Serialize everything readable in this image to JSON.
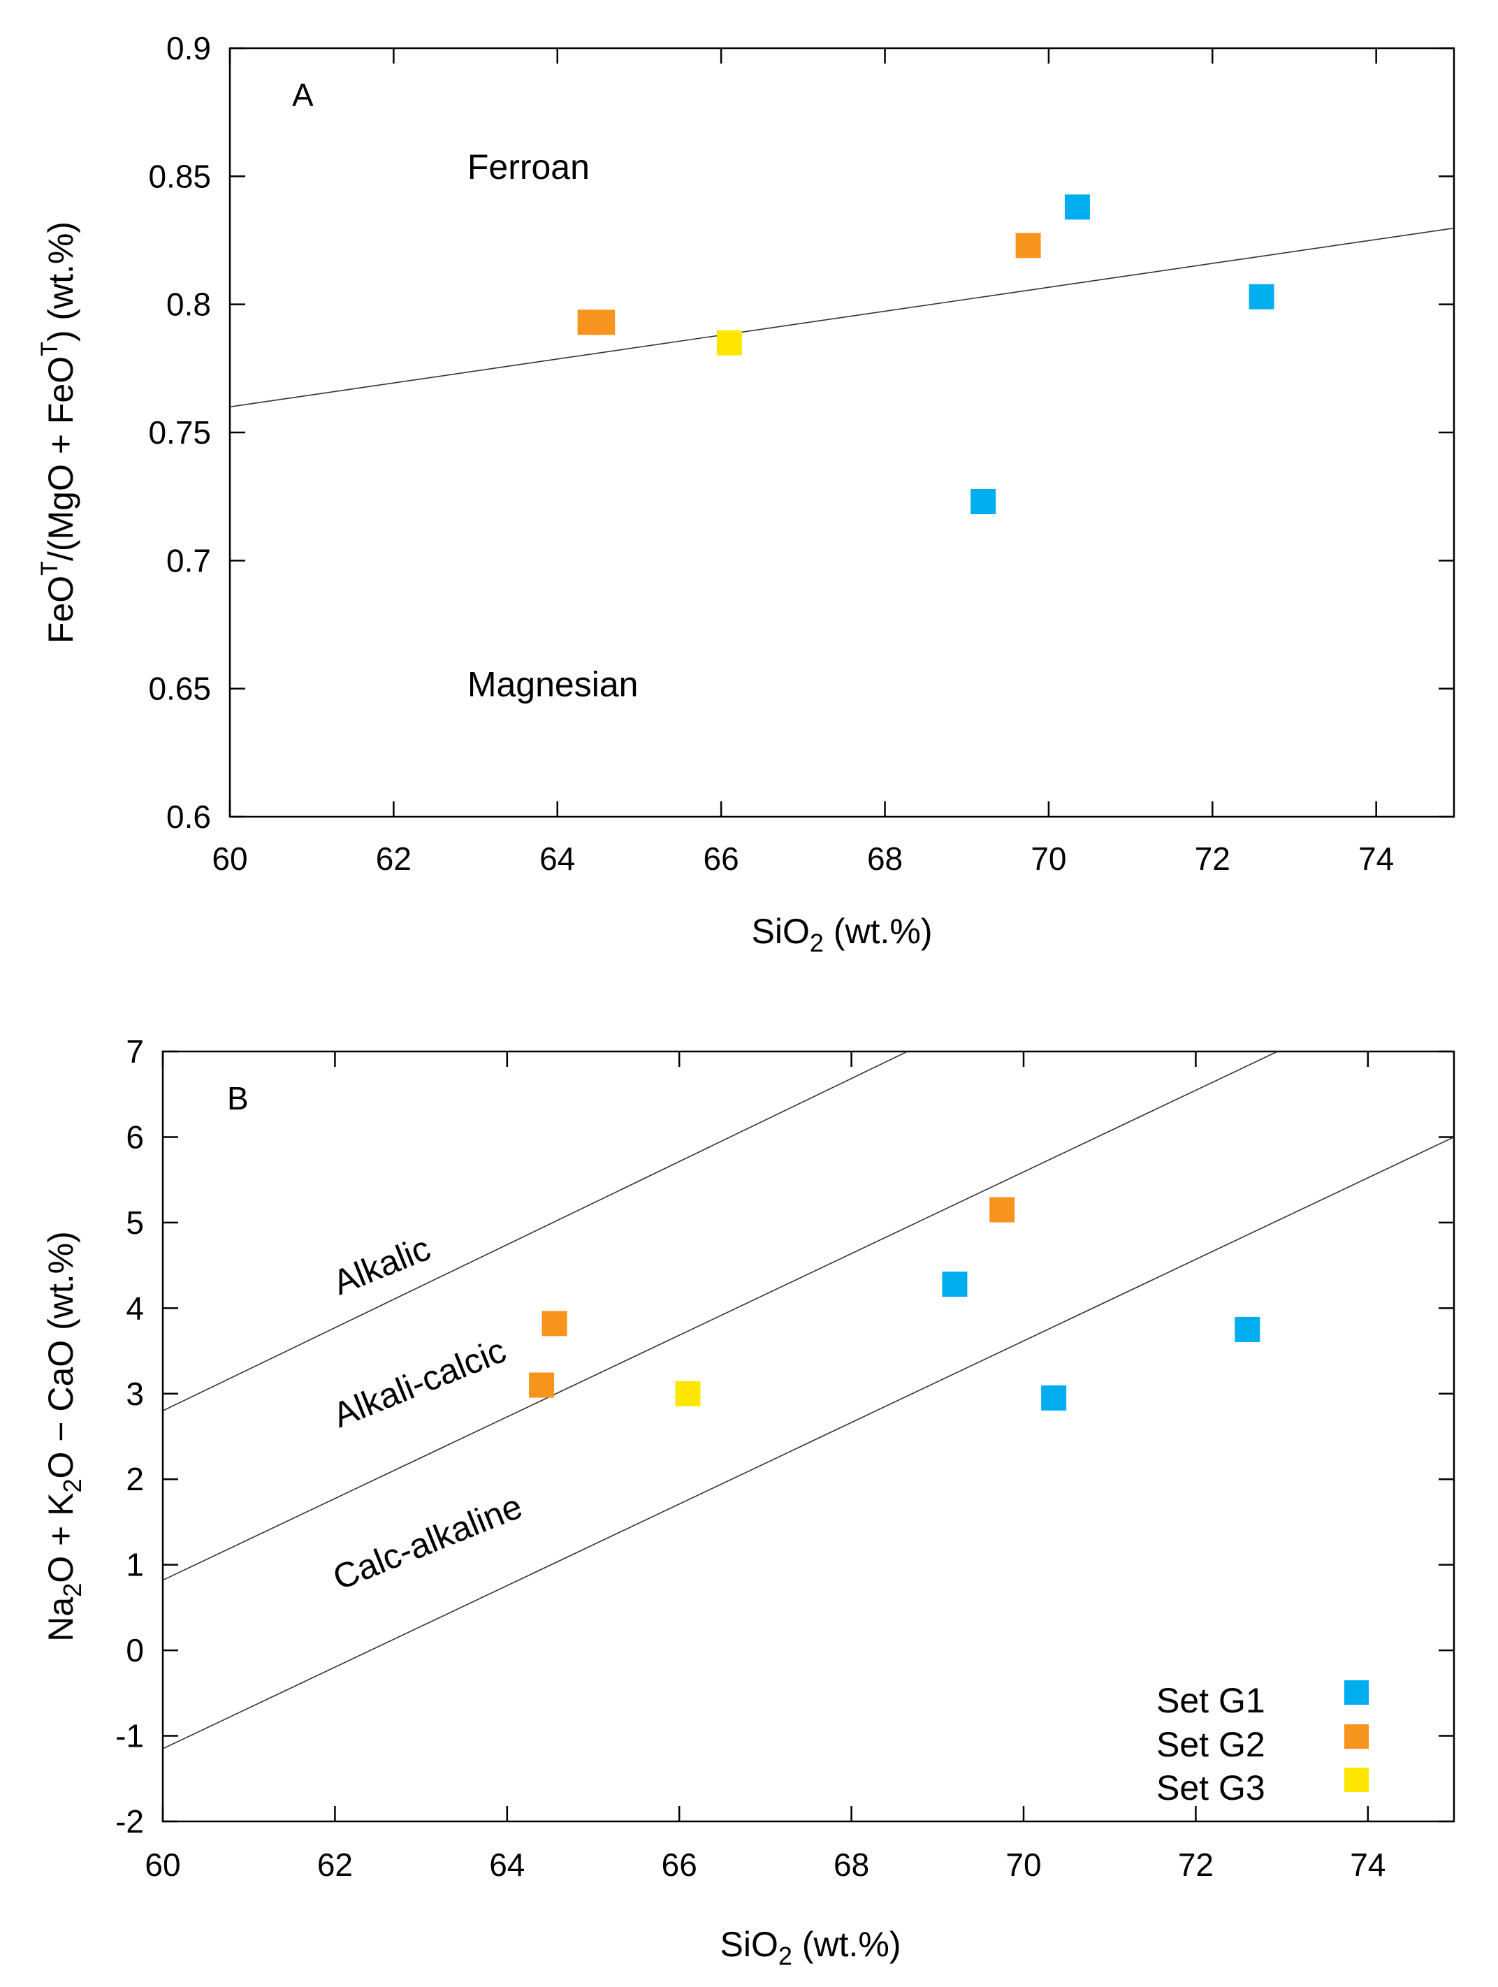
{
  "chart_data": [
    {
      "type": "scatter",
      "panel_label": "A",
      "xlabel": {
        "main": "SiO",
        "sub": "2",
        "tail": " (wt.%)"
      },
      "ylabel": {
        "p1": "FeO",
        "sup1": "T",
        "p2": "/(MgO + FeO",
        "sup2": "T",
        "p3": ") (wt.%)"
      },
      "xlim": [
        60,
        74.95
      ],
      "ylim": [
        0.6,
        0.9
      ],
      "xticks": [
        60,
        62,
        64,
        66,
        68,
        70,
        72,
        74
      ],
      "yticks": [
        0.6,
        0.65,
        0.7,
        0.75,
        0.8,
        0.85,
        0.9
      ],
      "xtick_labels": [
        "60",
        "62",
        "64",
        "66",
        "68",
        "70",
        "72",
        "74"
      ],
      "ytick_labels": [
        "0.6",
        "0.65",
        "0.7",
        "0.75",
        "0.8",
        "0.85",
        "0.9"
      ],
      "boundaries": [
        {
          "name": "ferroan-magnesian boundary",
          "x": [
            60,
            75
          ],
          "y": [
            0.76,
            0.83
          ]
        }
      ],
      "regions": [
        {
          "text": "Ferroan",
          "x": 62.9,
          "y": 0.849,
          "rotate": 0
        },
        {
          "text": "Magnesian",
          "x": 62.9,
          "y": 0.647,
          "rotate": 0
        }
      ],
      "series": [
        {
          "name": "Set G1",
          "color": "#00aeef",
          "points": [
            [
              70.35,
              0.838
            ],
            [
              72.6,
              0.803
            ],
            [
              69.2,
              0.723
            ]
          ]
        },
        {
          "name": "Set G2",
          "color": "#f7941d",
          "points": [
            [
              69.75,
              0.823
            ],
            [
              64.55,
              0.793
            ],
            [
              64.4,
              0.793
            ]
          ]
        },
        {
          "name": "Set G3",
          "color": "#ffe600",
          "points": [
            [
              66.1,
              0.785
            ]
          ]
        }
      ]
    },
    {
      "type": "scatter",
      "panel_label": "B",
      "xlabel": {
        "main": "SiO",
        "sub": "2",
        "tail": " (wt.%)"
      },
      "ylabel": {
        "p1": "Na",
        "sub1": "2",
        "p2": "O + K",
        "sub2": "2",
        "p3": "O − CaO (wt.%)"
      },
      "xlim": [
        60,
        75
      ],
      "ylim": [
        -2,
        7
      ],
      "xticks": [
        60,
        62,
        64,
        66,
        68,
        70,
        72,
        74
      ],
      "yticks": [
        -2,
        -1,
        0,
        1,
        2,
        3,
        4,
        5,
        6,
        7
      ],
      "xtick_labels": [
        "60",
        "62",
        "64",
        "66",
        "68",
        "70",
        "72",
        "74"
      ],
      "ytick_labels": [
        "-2",
        "-1",
        "0",
        "1",
        "2",
        "3",
        "4",
        "5",
        "6",
        "7"
      ],
      "boundaries": [
        {
          "name": "alkalic boundary",
          "x": [
            60,
            68.65
          ],
          "y": [
            2.8,
            7
          ]
        },
        {
          "name": "alkali-calcic boundary",
          "x": [
            60,
            72.95
          ],
          "y": [
            0.82,
            7
          ]
        },
        {
          "name": "calc-alkaline boundary",
          "x": [
            60,
            75
          ],
          "y": [
            -1.15,
            6
          ]
        }
      ],
      "regions": [
        {
          "text": "Alkalic",
          "x": 62.05,
          "y": 4.15,
          "rotate": -22
        },
        {
          "text": "Alkali-calcic",
          "x": 62.05,
          "y": 2.6,
          "rotate": -22
        },
        {
          "text": "Calc-alkaline",
          "x": 62.05,
          "y": 0.7,
          "rotate": -22
        }
      ],
      "series": [
        {
          "name": "Set G1",
          "color": "#00aeef",
          "points": [
            [
              69.2,
              4.28
            ],
            [
              70.35,
              2.95
            ],
            [
              72.6,
              3.75
            ]
          ]
        },
        {
          "name": "Set G2",
          "color": "#f7941d",
          "points": [
            [
              69.75,
              5.15
            ],
            [
              64.55,
              3.82
            ],
            [
              64.4,
              3.1
            ]
          ]
        },
        {
          "name": "Set G3",
          "color": "#ffe600",
          "points": [
            [
              66.1,
              3.0
            ]
          ]
        }
      ],
      "legend": {
        "position": "bottom-right",
        "items": [
          {
            "label": "Set G1",
            "color": "#00aeef"
          },
          {
            "label": "Set G2",
            "color": "#f7941d"
          },
          {
            "label": "Set G3",
            "color": "#ffe600"
          }
        ]
      }
    }
  ]
}
